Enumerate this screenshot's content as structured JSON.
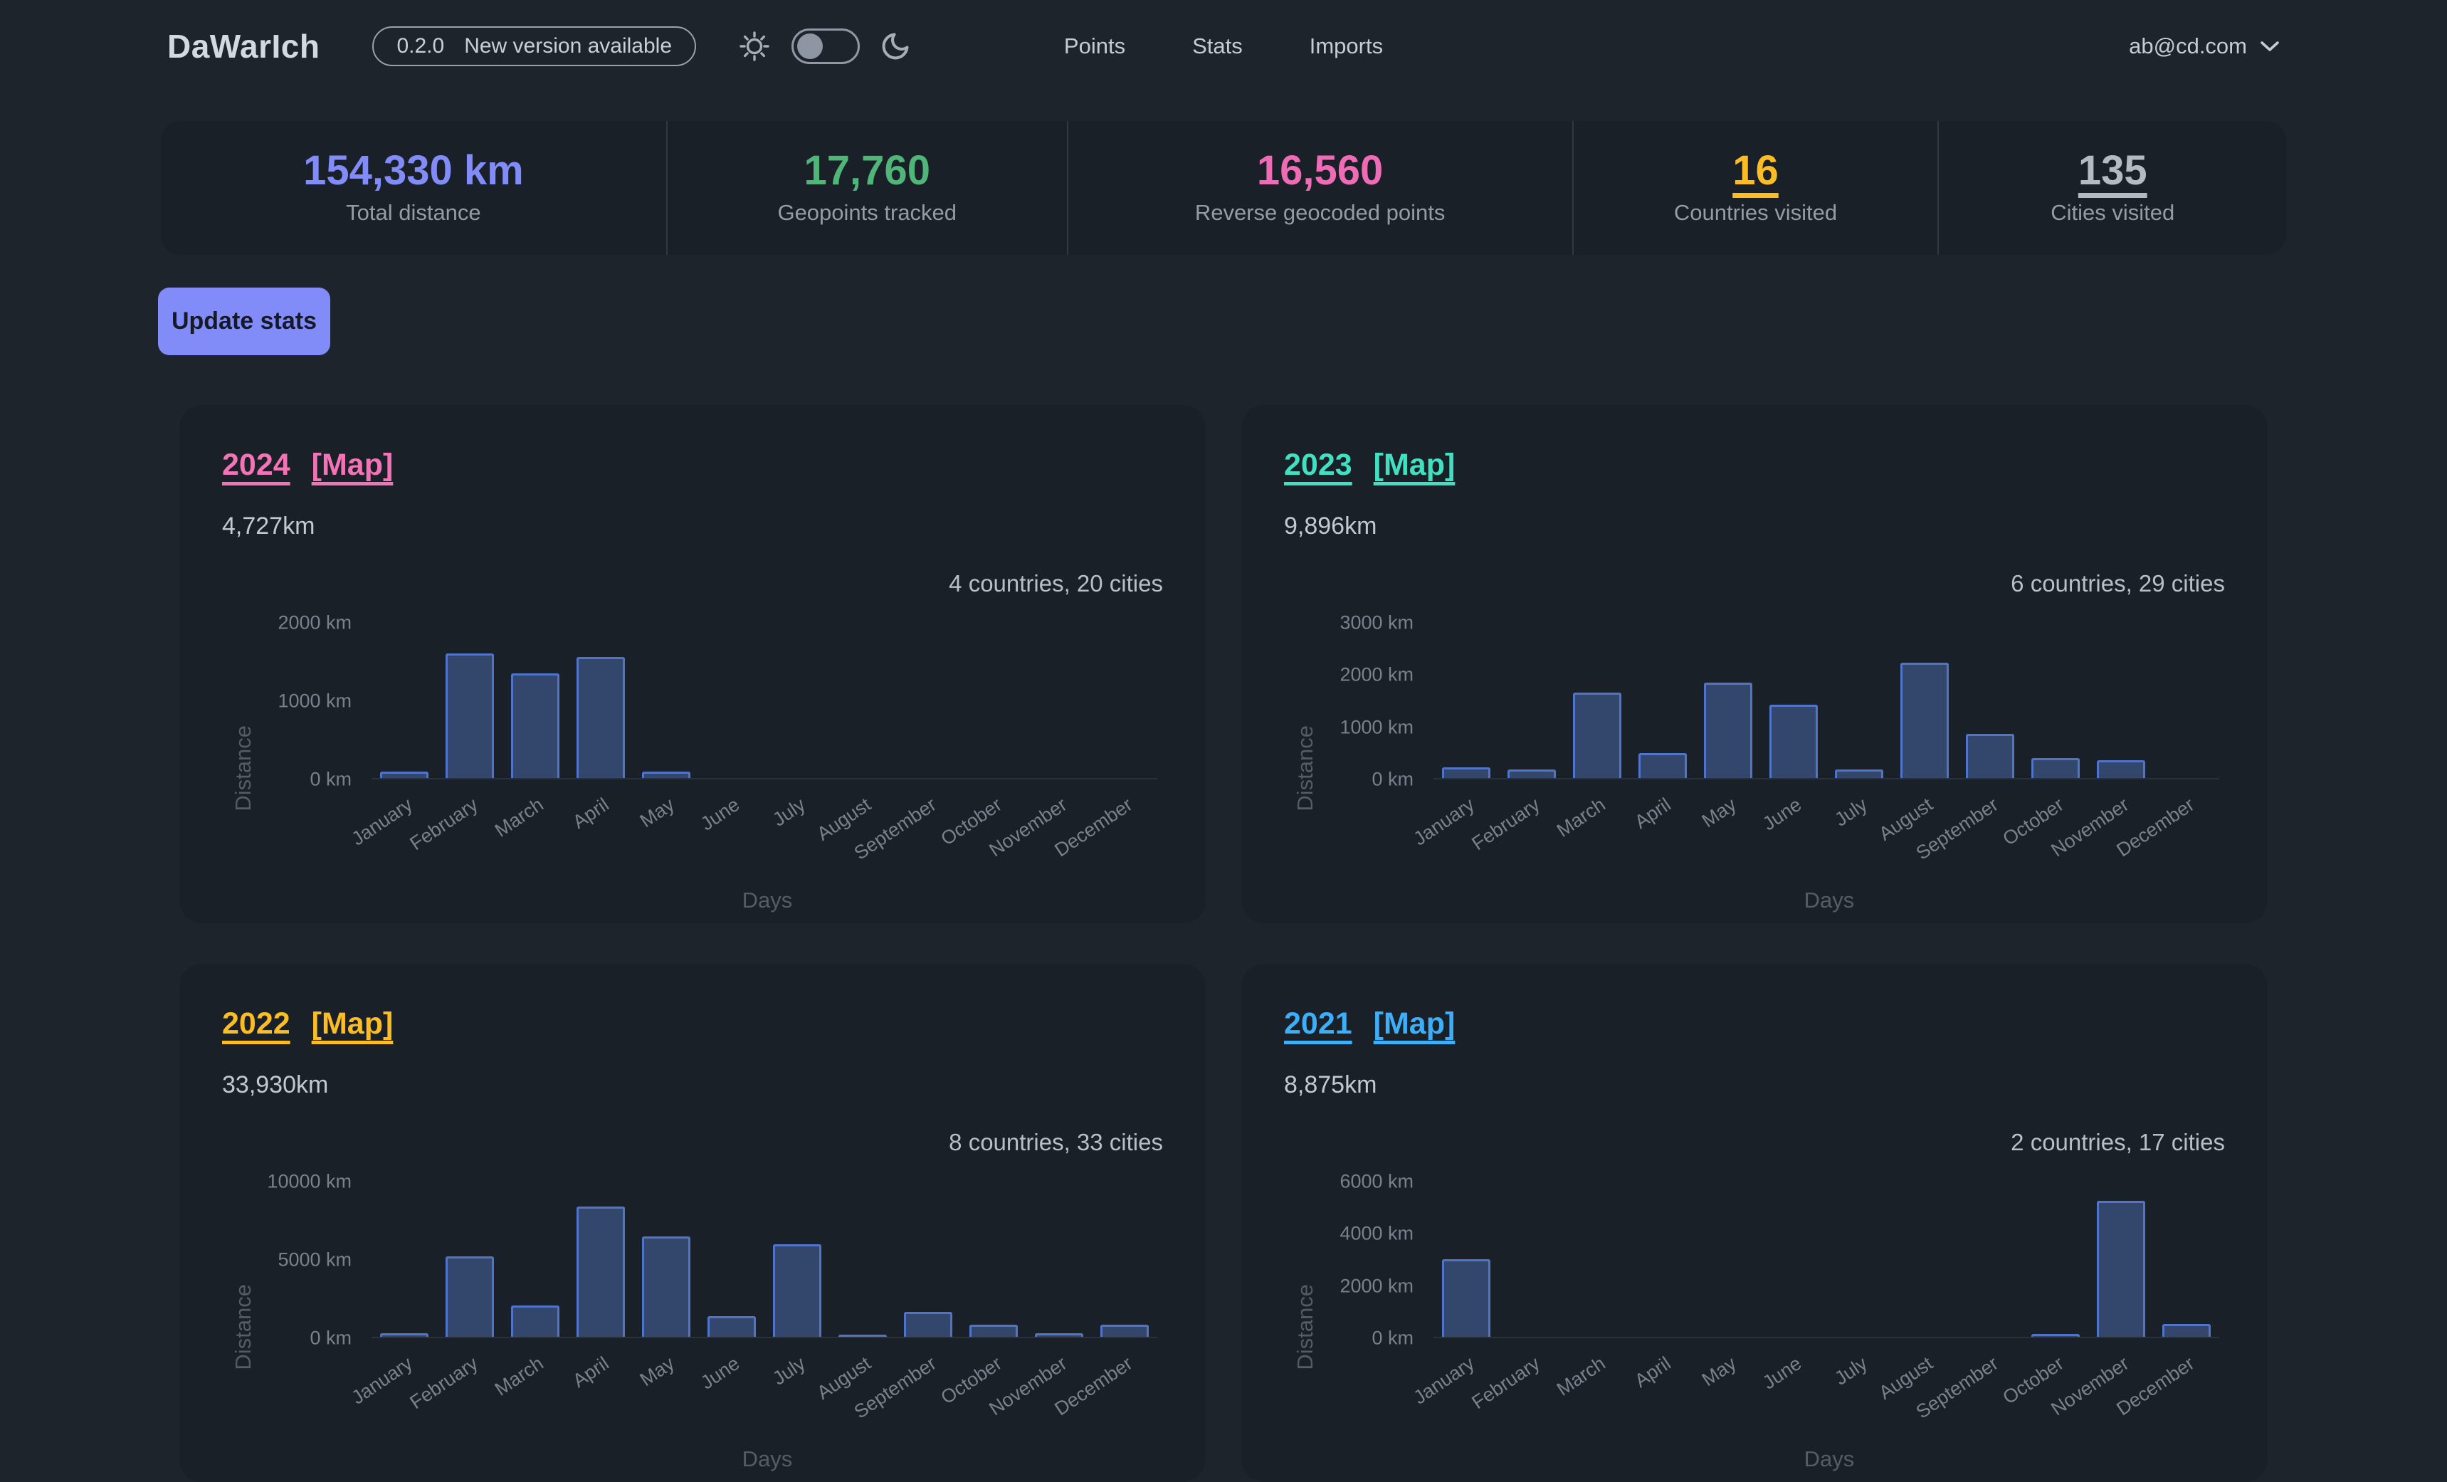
{
  "header": {
    "logo": "DaWarIch",
    "version_badge": {
      "version": "0.2.0",
      "label": "New version available"
    },
    "theme_toggle": {
      "state": "light-off",
      "left_icon": "sun-icon",
      "right_icon": "moon-icon"
    },
    "nav": [
      {
        "label": "Points"
      },
      {
        "label": "Stats"
      },
      {
        "label": "Imports"
      }
    ],
    "user": {
      "email": "ab@cd.com",
      "menu_icon": "chevron-down-icon"
    }
  },
  "stats": {
    "update_button_label": "Update stats",
    "items": [
      {
        "value": "154,330 km",
        "label": "Total distance",
        "color": "#818cf8",
        "underlined": false
      },
      {
        "value": "17,760",
        "label": "Geopoints tracked",
        "color": "#50b578",
        "underlined": false
      },
      {
        "value": "16,560",
        "label": "Reverse geocoded points",
        "color": "#f06bb6",
        "underlined": false
      },
      {
        "value": "16",
        "label": "Countries visited",
        "color": "#fbbd23",
        "underlined": true
      },
      {
        "value": "135",
        "label": "Cities visited",
        "color": "#b4bac4",
        "underlined": true
      }
    ]
  },
  "colors": {
    "bar_fill": "#33466c",
    "bar_border": "#4f74c9",
    "page_bg": "#1e242c",
    "card_bg": "#1a2028"
  },
  "cards": [
    {
      "year_label": "2024",
      "map_label": "[Map]",
      "accent": "#f472b6",
      "total": "4,727km",
      "summary": "4 countries, 20 cities",
      "chart_data": {
        "type": "bar",
        "title": "",
        "xlabel": "Days",
        "ylabel": "Distance",
        "ylim": [
          0,
          2000
        ],
        "yticks": [
          0,
          1000,
          2000
        ],
        "ytick_suffix": " km",
        "categories": [
          "January",
          "February",
          "March",
          "April",
          "May",
          "June",
          "July",
          "August",
          "September",
          "October",
          "November",
          "December"
        ],
        "values": [
          80,
          1610,
          1350,
          1560,
          85,
          0,
          0,
          0,
          0,
          0,
          0,
          0
        ]
      }
    },
    {
      "year_label": "2023",
      "map_label": "[Map]",
      "accent": "#41e0c0",
      "total": "9,896km",
      "summary": "6 countries, 29 cities",
      "chart_data": {
        "type": "bar",
        "title": "",
        "xlabel": "Days",
        "ylabel": "Distance",
        "ylim": [
          0,
          3000
        ],
        "yticks": [
          0,
          1000,
          2000,
          3000
        ],
        "ytick_suffix": " km",
        "categories": [
          "January",
          "February",
          "March",
          "April",
          "May",
          "June",
          "July",
          "August",
          "September",
          "October",
          "November",
          "December"
        ],
        "values": [
          200,
          160,
          1650,
          480,
          1850,
          1420,
          170,
          2230,
          850,
          390,
          340,
          0
        ]
      }
    },
    {
      "year_label": "2022",
      "map_label": "[Map]",
      "accent": "#fbbd23",
      "total": "33,930km",
      "summary": "8 countries, 33 cities",
      "chart_data": {
        "type": "bar",
        "title": "",
        "xlabel": "Days",
        "ylabel": "Distance",
        "ylim": [
          0,
          10000
        ],
        "yticks": [
          0,
          5000,
          10000
        ],
        "ytick_suffix": " km",
        "categories": [
          "January",
          "February",
          "March",
          "April",
          "May",
          "June",
          "July",
          "August",
          "September",
          "October",
          "November",
          "December"
        ],
        "values": [
          250,
          5200,
          2000,
          8400,
          6450,
          1350,
          5950,
          150,
          1600,
          800,
          250,
          800
        ]
      }
    },
    {
      "year_label": "2021",
      "map_label": "[Map]",
      "accent": "#3daef8",
      "total": "8,875km",
      "summary": "2 countries, 17 cities",
      "chart_data": {
        "type": "bar",
        "title": "",
        "xlabel": "Days",
        "ylabel": "Distance",
        "ylim": [
          0,
          6000
        ],
        "yticks": [
          0,
          2000,
          4000,
          6000
        ],
        "ytick_suffix": " km",
        "categories": [
          "January",
          "February",
          "March",
          "April",
          "May",
          "June",
          "July",
          "August",
          "September",
          "October",
          "November",
          "December"
        ],
        "values": [
          3000,
          0,
          0,
          0,
          0,
          0,
          0,
          0,
          0,
          120,
          5250,
          500
        ]
      }
    }
  ]
}
